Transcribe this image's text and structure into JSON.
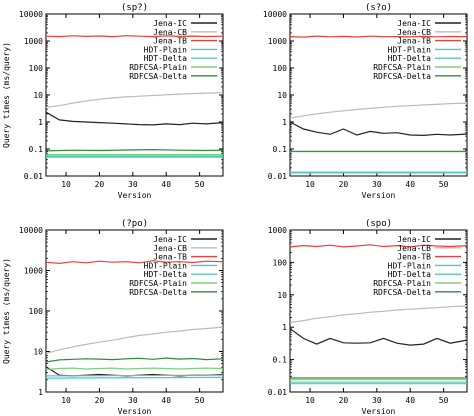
{
  "chart_data": {
    "type": "line",
    "shared_ylabel": "Query times (ms/query)",
    "shared_xlabel": "Version",
    "panels": [
      {
        "title": "(sp?)",
        "xlabel": "Version",
        "ylabel": "Query times (ms/query)",
        "x_range": [
          4,
          57
        ],
        "x_ticks": [
          10,
          20,
          30,
          40,
          50
        ],
        "y_scale": "log",
        "y_range": [
          0.01,
          10000
        ],
        "y_ticks": [
          "0.01",
          "0.1",
          "1",
          "10",
          "100",
          "1000",
          "10000"
        ],
        "legend": "top-right",
        "series": [
          {
            "name": "Jena-IC",
            "color": "#222222",
            "x": [
              4,
              8,
              12,
              16,
              20,
              24,
              28,
              32,
              36,
              40,
              44,
              48,
              52,
              57
            ],
            "y": [
              2.3,
              1.2,
              1.05,
              1.0,
              0.95,
              0.9,
              0.85,
              0.8,
              0.78,
              0.85,
              0.8,
              0.9,
              0.85,
              0.95
            ]
          },
          {
            "name": "Jena-CB",
            "color": "#bbbbbb",
            "x": [
              4,
              8,
              12,
              16,
              20,
              24,
              28,
              32,
              36,
              40,
              44,
              48,
              52,
              57
            ],
            "y": [
              3.5,
              4.0,
              5.0,
              6.0,
              7.0,
              7.8,
              8.5,
              9.0,
              9.6,
              10.2,
              10.8,
              11.3,
              11.8,
              12.3
            ]
          },
          {
            "name": "Jena-TB",
            "color": "#e8413c",
            "x": [
              4,
              8,
              12,
              16,
              20,
              24,
              28,
              32,
              36,
              40,
              44,
              48,
              52,
              57
            ],
            "y": [
              1500,
              1460,
              1560,
              1480,
              1530,
              1450,
              1570,
              1500,
              1460,
              1550,
              1480,
              1520,
              1470,
              1500
            ]
          },
          {
            "name": "HDT-Plain",
            "color": "#40c8e0",
            "x": [
              4,
              57
            ],
            "y": [
              0.05,
              0.05
            ]
          },
          {
            "name": "HDT-Delta",
            "color": "#5cc8b4",
            "x": [
              4,
              57
            ],
            "y": [
              0.055,
              0.055
            ]
          },
          {
            "name": "RDFCSA-Plain",
            "color": "#7ed07e",
            "x": [
              4,
              57
            ],
            "y": [
              0.062,
              0.062
            ]
          },
          {
            "name": "RDFCSA-Delta",
            "color": "#2e8b3c",
            "x": [
              4,
              12,
              20,
              28,
              36,
              44,
              52,
              57
            ],
            "y": [
              0.085,
              0.09,
              0.088,
              0.092,
              0.095,
              0.09,
              0.088,
              0.09
            ]
          }
        ]
      },
      {
        "title": "(s?o)",
        "xlabel": "Version",
        "ylabel": "",
        "x_range": [
          4,
          57
        ],
        "x_ticks": [
          10,
          20,
          30,
          40,
          50
        ],
        "y_scale": "log",
        "y_range": [
          0.01,
          10000
        ],
        "y_ticks": [
          "0.01",
          "0.1",
          "1",
          "10",
          "100",
          "1000",
          "10000"
        ],
        "legend": "top-right",
        "series": [
          {
            "name": "Jena-IC",
            "color": "#222222",
            "x": [
              4,
              8,
              12,
              16,
              20,
              24,
              28,
              32,
              36,
              40,
              44,
              48,
              52,
              57
            ],
            "y": [
              1.0,
              0.55,
              0.42,
              0.35,
              0.55,
              0.33,
              0.45,
              0.38,
              0.4,
              0.33,
              0.32,
              0.35,
              0.33,
              0.36
            ]
          },
          {
            "name": "Jena-CB",
            "color": "#bbbbbb",
            "x": [
              4,
              8,
              12,
              16,
              20,
              24,
              28,
              32,
              36,
              40,
              44,
              48,
              52,
              57
            ],
            "y": [
              1.4,
              1.7,
              2.0,
              2.3,
              2.6,
              2.9,
              3.2,
              3.5,
              3.8,
              4.0,
              4.3,
              4.5,
              4.8,
              5.0
            ]
          },
          {
            "name": "Jena-TB",
            "color": "#e8413c",
            "x": [
              4,
              8,
              12,
              16,
              20,
              24,
              28,
              32,
              36,
              40,
              44,
              48,
              52,
              57
            ],
            "y": [
              1450,
              1400,
              1520,
              1430,
              1480,
              1410,
              1500,
              1440,
              1460,
              1420,
              1490,
              1430,
              1470,
              1450
            ]
          },
          {
            "name": "HDT-Plain",
            "color": "#40c8e0",
            "x": [
              4,
              57
            ],
            "y": [
              0.013,
              0.013
            ]
          },
          {
            "name": "HDT-Delta",
            "color": "#5cc8b4",
            "x": [
              4,
              57
            ],
            "y": [
              0.014,
              0.014
            ]
          },
          {
            "name": "RDFCSA-Plain",
            "color": "#7ed07e",
            "x": [
              4,
              57
            ],
            "y": [
              0.08,
              0.08
            ]
          },
          {
            "name": "RDFCSA-Delta",
            "color": "#2e8b3c",
            "x": [
              4,
              57
            ],
            "y": [
              0.082,
              0.082
            ]
          }
        ]
      },
      {
        "title": "(?po)",
        "xlabel": "Version",
        "ylabel": "Query times (ms/query)",
        "x_range": [
          4,
          57
        ],
        "x_ticks": [
          10,
          20,
          30,
          40,
          50
        ],
        "y_scale": "log",
        "y_range": [
          1,
          10000
        ],
        "y_ticks": [
          "1",
          "10",
          "100",
          "1000",
          "10000"
        ],
        "legend": "top-right",
        "series": [
          {
            "name": "Jena-IC",
            "color": "#222222",
            "x": [
              4,
              8,
              12,
              16,
              20,
              24,
              28,
              32,
              36,
              40,
              44,
              48,
              52,
              57
            ],
            "y": [
              4.2,
              2.6,
              2.5,
              2.6,
              2.7,
              2.6,
              2.5,
              2.6,
              2.7,
              2.6,
              2.5,
              2.6,
              2.6,
              2.7
            ]
          },
          {
            "name": "Jena-CB",
            "color": "#bbbbbb",
            "x": [
              4,
              8,
              12,
              16,
              20,
              24,
              28,
              32,
              36,
              40,
              44,
              48,
              52,
              57
            ],
            "y": [
              9,
              11,
              13,
              15,
              17,
              19,
              22,
              25,
              27,
              30,
              32,
              35,
              37,
              40
            ]
          },
          {
            "name": "Jena-TB",
            "color": "#e8413c",
            "x": [
              4,
              8,
              12,
              16,
              20,
              24,
              28,
              32,
              36,
              40,
              44,
              48,
              52,
              57
            ],
            "y": [
              1600,
              1500,
              1650,
              1550,
              1700,
              1600,
              1650,
              1550,
              1750,
              1600,
              1650,
              1580,
              1700,
              1650
            ]
          },
          {
            "name": "HDT-Plain",
            "color": "#40c8e0",
            "x": [
              4,
              57
            ],
            "y": [
              2.2,
              2.3
            ]
          },
          {
            "name": "HDT-Delta",
            "color": "#5cc8b4",
            "x": [
              4,
              57
            ],
            "y": [
              2.5,
              2.6
            ]
          },
          {
            "name": "RDFCSA-Plain",
            "color": "#7ed07e",
            "x": [
              4,
              8,
              12,
              16,
              20,
              24,
              28,
              32,
              36,
              40,
              44,
              48,
              52,
              57
            ],
            "y": [
              3.6,
              3.8,
              3.9,
              3.7,
              3.8,
              3.9,
              3.7,
              3.8,
              3.9,
              3.8,
              3.7,
              3.8,
              3.9,
              3.8
            ]
          },
          {
            "name": "RDFCSA-Delta",
            "color": "#2e8b3c",
            "x": [
              4,
              8,
              12,
              16,
              20,
              24,
              28,
              32,
              36,
              40,
              44,
              48,
              52,
              57
            ],
            "y": [
              5.5,
              6.2,
              6.4,
              6.6,
              6.5,
              6.3,
              6.6,
              6.8,
              6.4,
              6.9,
              6.5,
              6.7,
              6.3,
              6.6
            ]
          }
        ]
      },
      {
        "title": "(spo)",
        "xlabel": "Version",
        "ylabel": "",
        "x_range": [
          4,
          57
        ],
        "x_ticks": [
          10,
          20,
          30,
          40,
          50
        ],
        "y_scale": "log",
        "y_range": [
          0.01,
          1000
        ],
        "y_ticks": [
          "0.01",
          "0.1",
          "1",
          "10",
          "100",
          "1000"
        ],
        "legend": "top-right",
        "series": [
          {
            "name": "Jena-IC",
            "color": "#222222",
            "x": [
              4,
              8,
              12,
              16,
              20,
              24,
              28,
              32,
              36,
              40,
              44,
              48,
              52,
              57
            ],
            "y": [
              0.9,
              0.45,
              0.3,
              0.45,
              0.33,
              0.32,
              0.33,
              0.45,
              0.32,
              0.28,
              0.3,
              0.45,
              0.32,
              0.4
            ]
          },
          {
            "name": "Jena-CB",
            "color": "#bbbbbb",
            "x": [
              4,
              8,
              12,
              16,
              20,
              24,
              28,
              32,
              36,
              40,
              44,
              48,
              52,
              57
            ],
            "y": [
              1.4,
              1.6,
              1.9,
              2.1,
              2.4,
              2.6,
              2.9,
              3.1,
              3.4,
              3.6,
              3.8,
              4.0,
              4.3,
              4.5
            ]
          },
          {
            "name": "Jena-TB",
            "color": "#e8413c",
            "x": [
              4,
              8,
              12,
              16,
              20,
              24,
              28,
              32,
              36,
              40,
              44,
              48,
              52,
              57
            ],
            "y": [
              300,
              330,
              310,
              340,
              300,
              320,
              350,
              310,
              330,
              300,
              340,
              320,
              310,
              330
            ]
          },
          {
            "name": "HDT-Plain",
            "color": "#40c8e0",
            "x": [
              4,
              57
            ],
            "y": [
              0.018,
              0.018
            ]
          },
          {
            "name": "HDT-Delta",
            "color": "#5cc8b4",
            "x": [
              4,
              57
            ],
            "y": [
              0.02,
              0.02
            ]
          },
          {
            "name": "RDFCSA-Plain",
            "color": "#7ed07e",
            "x": [
              4,
              57
            ],
            "y": [
              0.024,
              0.024
            ]
          },
          {
            "name": "RDFCSA-Delta",
            "color": "#2e8b3c",
            "x": [
              4,
              57
            ],
            "y": [
              0.027,
              0.027
            ]
          }
        ]
      }
    ]
  }
}
